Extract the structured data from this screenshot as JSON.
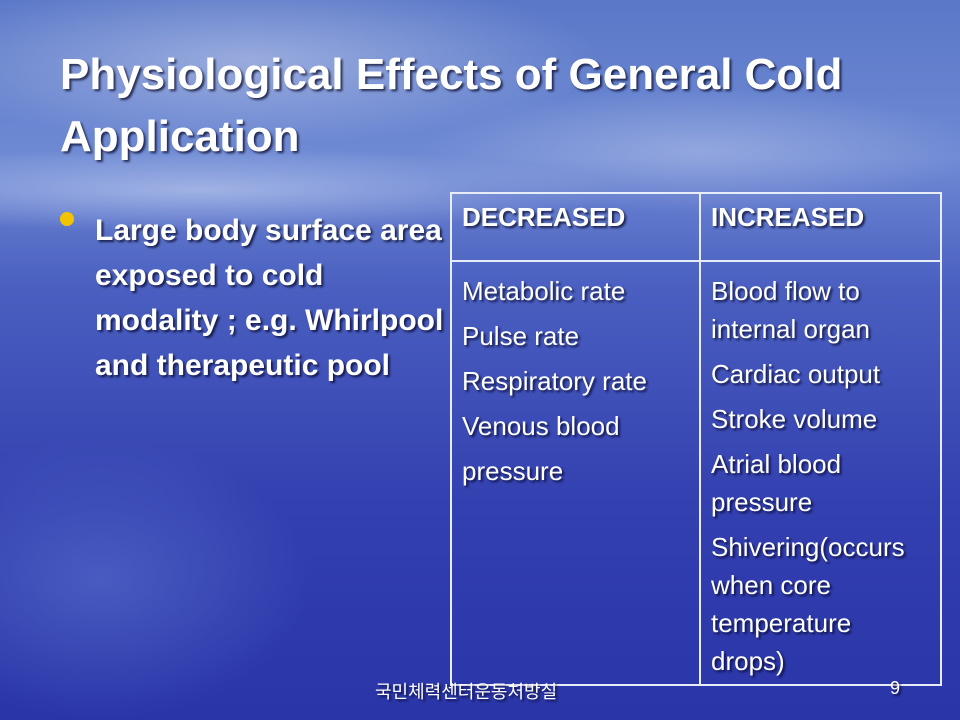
{
  "title": "Physiological Effects of General Cold Application",
  "bullets": [
    "Large body surface area exposed to cold modality ; e.g. Whirlpool and therapeutic pool"
  ],
  "table": {
    "headers": [
      "DECREASED",
      "INCREASED"
    ],
    "body": [
      [
        "Metabolic rate",
        "Pulse rate",
        "Respiratory rate",
        "Venous blood",
        "pressure"
      ],
      [
        "Blood flow to internal organ",
        "Cardiac output",
        "Stroke volume",
        "Atrial blood pressure",
        "Shivering(occurs when core temperature drops)"
      ]
    ]
  },
  "footer": {
    "text": "국민체력센터운동처방실",
    "page_number": "9"
  }
}
